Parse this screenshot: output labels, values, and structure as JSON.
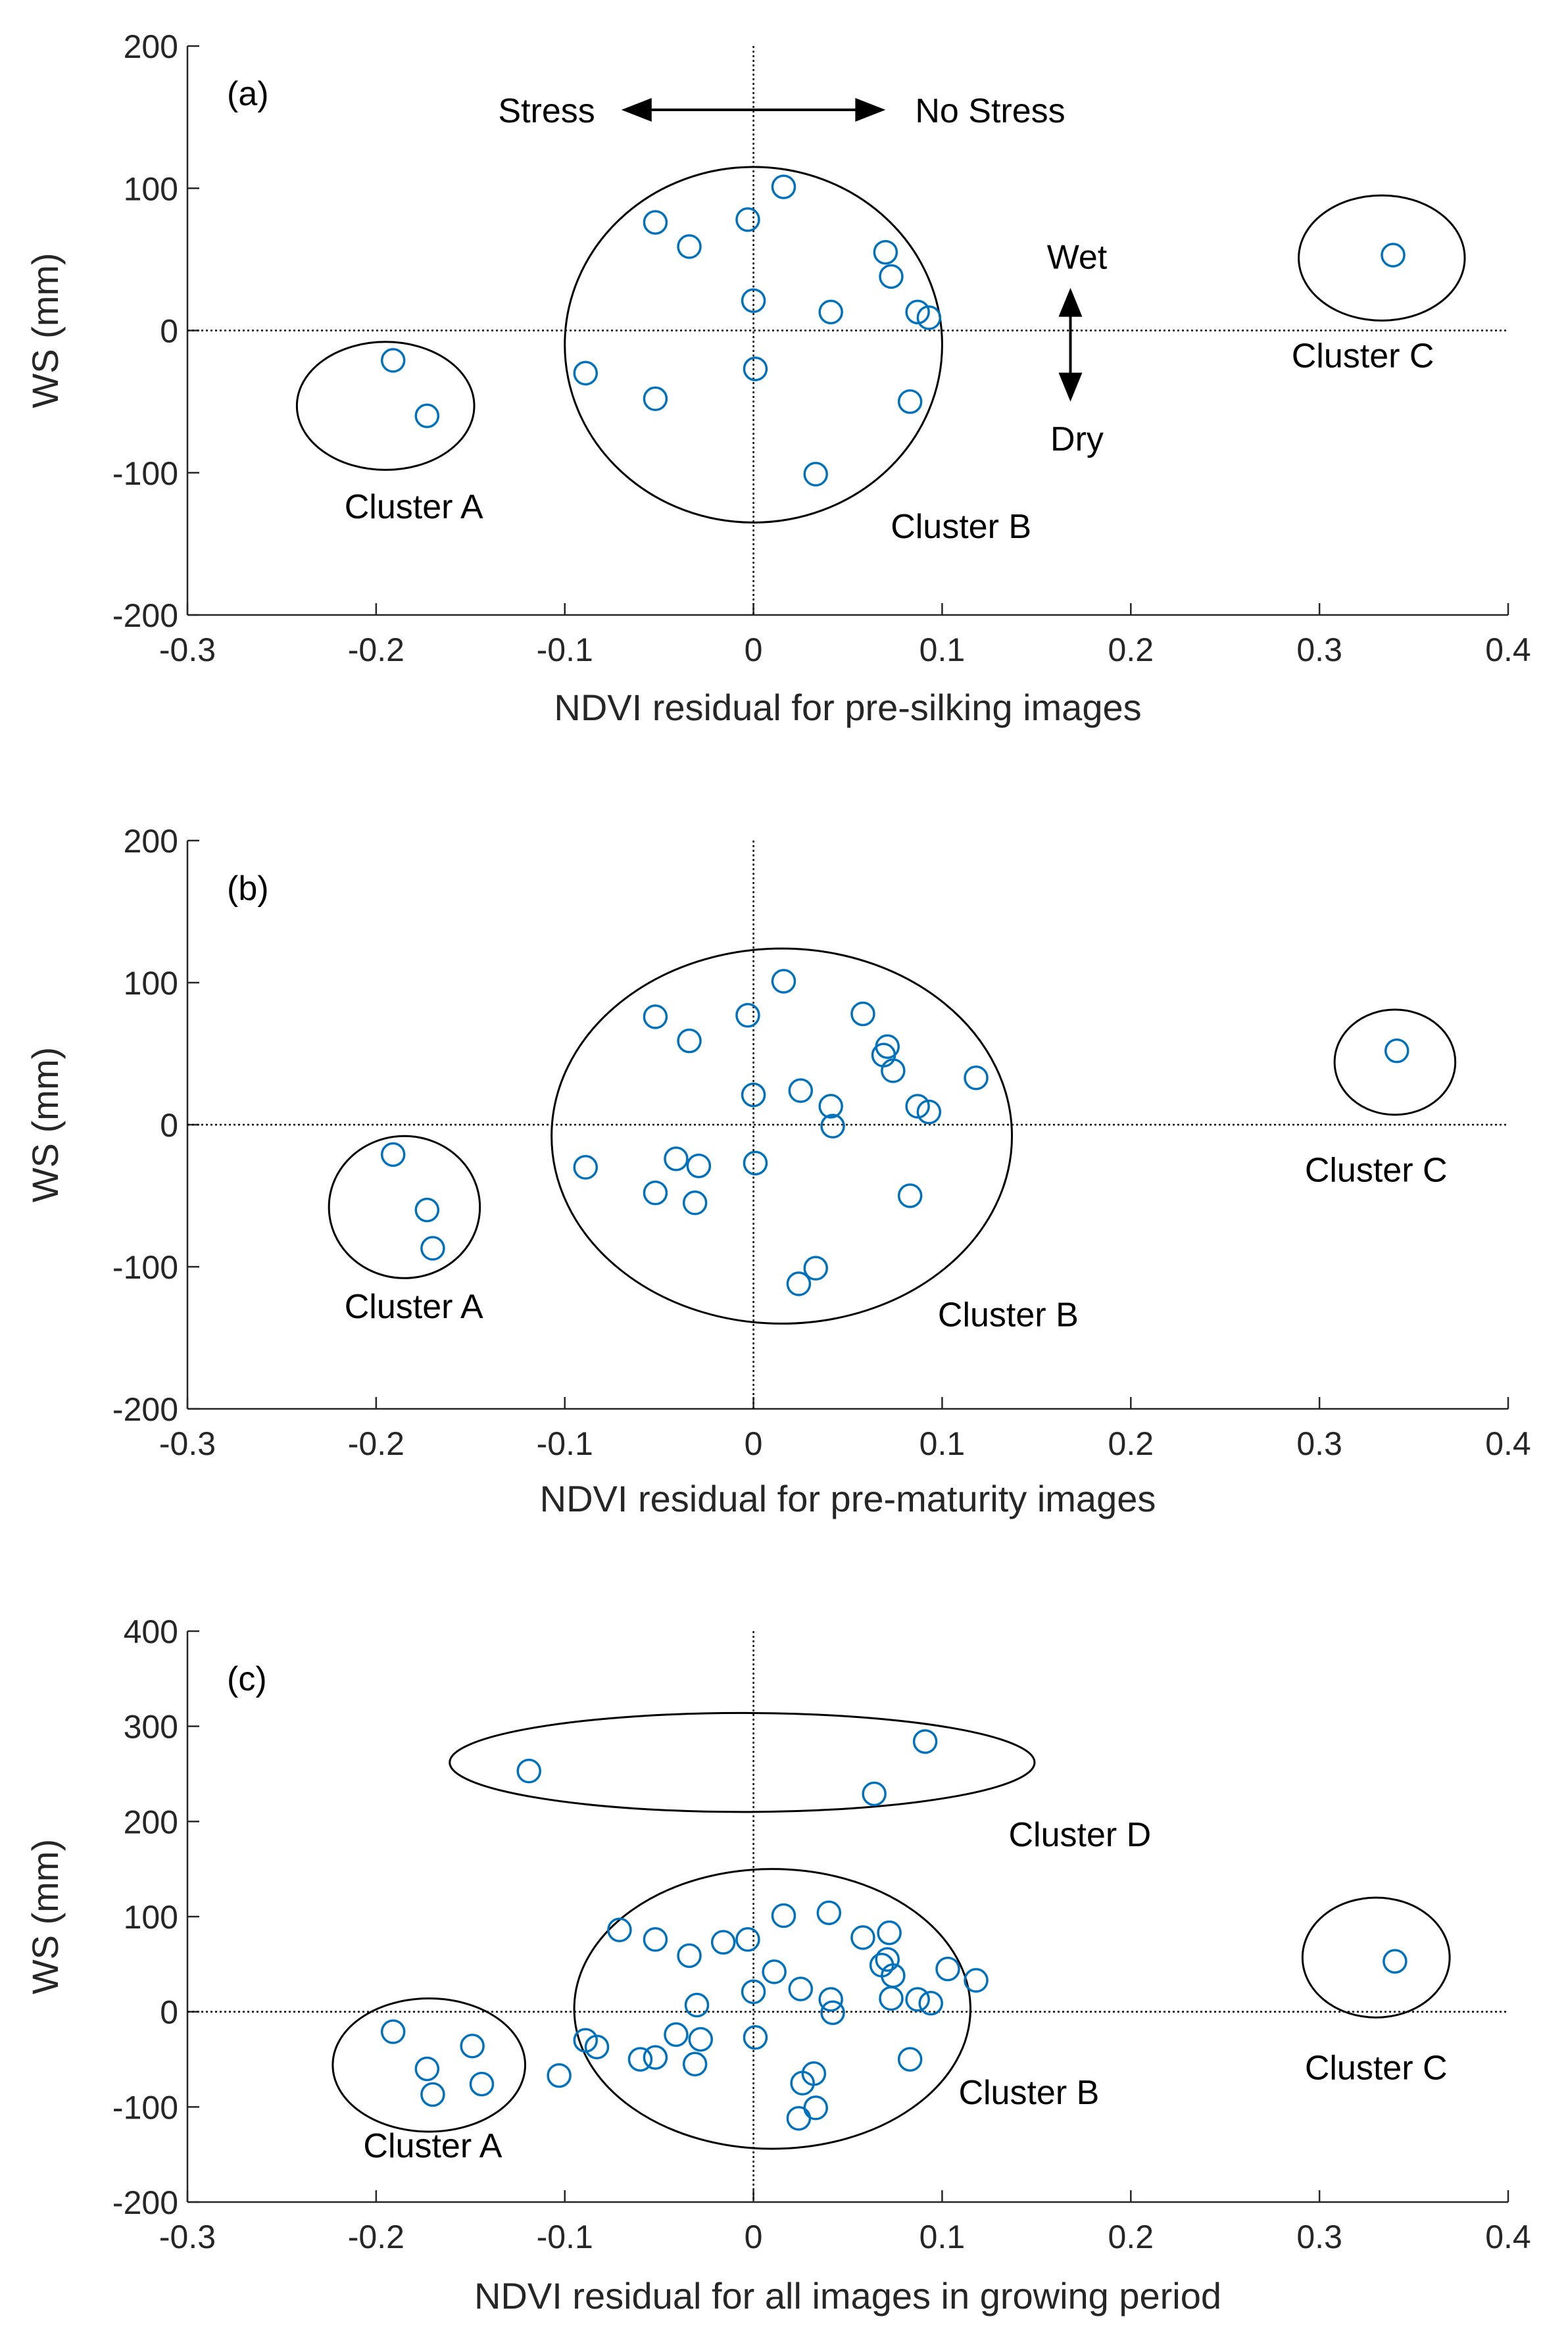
{
  "chart_data": [
    {
      "type": "scatter",
      "panel_label": "(a)",
      "xlabel": "NDVI residual for pre-silking images",
      "ylabel": "WS (mm)",
      "xlim": [
        -0.3,
        0.4
      ],
      "ylim": [
        -200,
        200
      ],
      "xticks": [
        -0.3,
        -0.2,
        -0.1,
        0,
        0.1,
        0.2,
        0.3,
        0.4
      ],
      "yticks": [
        -200,
        -100,
        0,
        100,
        200
      ],
      "xtick_labels": [
        "-0.3",
        "-0.2",
        "-0.1",
        "0",
        "0.1",
        "0.2",
        "0.3",
        "0.4"
      ],
      "ytick_labels": [
        "-200",
        "-100",
        "0",
        "100",
        "200"
      ],
      "marker_color": "#0072BD",
      "points": [
        {
          "x": -0.191,
          "y": -21
        },
        {
          "x": -0.173,
          "y": -60
        },
        {
          "x": -0.089,
          "y": -30
        },
        {
          "x": -0.052,
          "y": 76
        },
        {
          "x": -0.052,
          "y": -48
        },
        {
          "x": -0.034,
          "y": 59
        },
        {
          "x": -0.003,
          "y": 78
        },
        {
          "x": 0.0,
          "y": 21
        },
        {
          "x": 0.001,
          "y": -27
        },
        {
          "x": 0.016,
          "y": 101
        },
        {
          "x": 0.033,
          "y": -101
        },
        {
          "x": 0.041,
          "y": 13
        },
        {
          "x": 0.07,
          "y": 55
        },
        {
          "x": 0.073,
          "y": 38
        },
        {
          "x": 0.083,
          "y": -50
        },
        {
          "x": 0.087,
          "y": 13
        },
        {
          "x": 0.093,
          "y": 9
        },
        {
          "x": 0.339,
          "y": 53
        }
      ],
      "clusters": [
        {
          "label": "Cluster A",
          "cx": -0.195,
          "cy": -53,
          "rx": 0.047,
          "ry": 45,
          "label_x": -0.18,
          "label_y": -132
        },
        {
          "label": "Cluster B",
          "cx": 0.0,
          "cy": -10,
          "rx": 0.1,
          "ry": 125,
          "label_x": 0.11,
          "label_y": -146
        },
        {
          "label": "Cluster C",
          "cx": 0.333,
          "cy": 51,
          "rx": 0.044,
          "ry": 44,
          "label_x": 0.323,
          "label_y": -26
        }
      ],
      "annotations": {
        "stress_left": "Stress",
        "stress_right": "No Stress",
        "wet": "Wet",
        "dry": "Dry"
      }
    },
    {
      "type": "scatter",
      "panel_label": "(b)",
      "xlabel": "NDVI residual for pre-maturity images",
      "ylabel": "WS (mm)",
      "xlim": [
        -0.3,
        0.4
      ],
      "ylim": [
        -200,
        200
      ],
      "xticks": [
        -0.3,
        -0.2,
        -0.1,
        0,
        0.1,
        0.2,
        0.3,
        0.4
      ],
      "yticks": [
        -200,
        -100,
        0,
        100,
        200
      ],
      "xtick_labels": [
        "-0.3",
        "-0.2",
        "-0.1",
        "0",
        "0.1",
        "0.2",
        "0.3",
        "0.4"
      ],
      "ytick_labels": [
        "-200",
        "-100",
        "0",
        "100",
        "200"
      ],
      "marker_color": "#0072BD",
      "points": [
        {
          "x": -0.191,
          "y": -21
        },
        {
          "x": -0.173,
          "y": -60
        },
        {
          "x": -0.17,
          "y": -87
        },
        {
          "x": -0.089,
          "y": -30
        },
        {
          "x": -0.052,
          "y": 76
        },
        {
          "x": -0.052,
          "y": -48
        },
        {
          "x": -0.041,
          "y": -24
        },
        {
          "x": -0.034,
          "y": 59
        },
        {
          "x": -0.031,
          "y": -55
        },
        {
          "x": -0.029,
          "y": -29
        },
        {
          "x": -0.003,
          "y": 77
        },
        {
          "x": 0.0,
          "y": 21
        },
        {
          "x": 0.001,
          "y": -27
        },
        {
          "x": 0.016,
          "y": 101
        },
        {
          "x": 0.024,
          "y": -112
        },
        {
          "x": 0.025,
          "y": 24
        },
        {
          "x": 0.033,
          "y": -101
        },
        {
          "x": 0.041,
          "y": 13
        },
        {
          "x": 0.042,
          "y": -1
        },
        {
          "x": 0.058,
          "y": 78
        },
        {
          "x": 0.069,
          "y": 49
        },
        {
          "x": 0.071,
          "y": 55
        },
        {
          "x": 0.074,
          "y": 38
        },
        {
          "x": 0.083,
          "y": -50
        },
        {
          "x": 0.087,
          "y": 13
        },
        {
          "x": 0.093,
          "y": 9
        },
        {
          "x": 0.118,
          "y": 33
        },
        {
          "x": 0.341,
          "y": 52
        }
      ],
      "clusters": [
        {
          "label": "Cluster A",
          "cx": -0.185,
          "cy": -58,
          "rx": 0.04,
          "ry": 50,
          "label_x": -0.18,
          "label_y": -136
        },
        {
          "label": "Cluster B",
          "cx": 0.015,
          "cy": -8,
          "rx": 0.122,
          "ry": 132,
          "label_x": 0.135,
          "label_y": -142
        },
        {
          "label": "Cluster C",
          "cx": 0.34,
          "cy": 44,
          "rx": 0.032,
          "ry": 37,
          "label_x": 0.33,
          "label_y": -40
        }
      ]
    },
    {
      "type": "scatter",
      "panel_label": "(c)",
      "xlabel": "NDVI residual for all images in growing period",
      "ylabel": "WS (mm)",
      "xlim": [
        -0.3,
        0.4
      ],
      "ylim": [
        -200,
        400
      ],
      "xticks": [
        -0.3,
        -0.2,
        -0.1,
        0,
        0.1,
        0.2,
        0.3,
        0.4
      ],
      "yticks": [
        -200,
        -100,
        0,
        100,
        200,
        300,
        400
      ],
      "xtick_labels": [
        "-0.3",
        "-0.2",
        "-0.1",
        "0",
        "0.1",
        "0.2",
        "0.3",
        "0.4"
      ],
      "ytick_labels": [
        "-200",
        "-100",
        "0",
        "100",
        "200",
        "300",
        "400"
      ],
      "marker_color": "#0072BD",
      "points": [
        {
          "x": -0.191,
          "y": -21
        },
        {
          "x": -0.173,
          "y": -60
        },
        {
          "x": -0.17,
          "y": -87
        },
        {
          "x": -0.149,
          "y": -36
        },
        {
          "x": -0.144,
          "y": -76
        },
        {
          "x": -0.119,
          "y": 253
        },
        {
          "x": -0.103,
          "y": -67
        },
        {
          "x": -0.089,
          "y": -30
        },
        {
          "x": -0.083,
          "y": -37
        },
        {
          "x": -0.071,
          "y": 86
        },
        {
          "x": -0.06,
          "y": -50
        },
        {
          "x": -0.052,
          "y": 76
        },
        {
          "x": -0.052,
          "y": -48
        },
        {
          "x": -0.041,
          "y": -24
        },
        {
          "x": -0.034,
          "y": 59
        },
        {
          "x": -0.031,
          "y": -55
        },
        {
          "x": -0.03,
          "y": 7
        },
        {
          "x": -0.028,
          "y": -29
        },
        {
          "x": -0.016,
          "y": 73
        },
        {
          "x": -0.003,
          "y": 76
        },
        {
          "x": 0.0,
          "y": 21
        },
        {
          "x": 0.001,
          "y": -27
        },
        {
          "x": 0.011,
          "y": 42
        },
        {
          "x": 0.016,
          "y": 101
        },
        {
          "x": 0.024,
          "y": -112
        },
        {
          "x": 0.025,
          "y": 24
        },
        {
          "x": 0.026,
          "y": -75
        },
        {
          "x": 0.032,
          "y": -65
        },
        {
          "x": 0.033,
          "y": -101
        },
        {
          "x": 0.04,
          "y": 104
        },
        {
          "x": 0.041,
          "y": 13
        },
        {
          "x": 0.042,
          "y": -1
        },
        {
          "x": 0.058,
          "y": 78
        },
        {
          "x": 0.064,
          "y": 229
        },
        {
          "x": 0.068,
          "y": 49
        },
        {
          "x": 0.071,
          "y": 55
        },
        {
          "x": 0.072,
          "y": 83
        },
        {
          "x": 0.073,
          "y": 14
        },
        {
          "x": 0.074,
          "y": 38
        },
        {
          "x": 0.083,
          "y": -50
        },
        {
          "x": 0.087,
          "y": 13
        },
        {
          "x": 0.091,
          "y": 284
        },
        {
          "x": 0.094,
          "y": 9
        },
        {
          "x": 0.103,
          "y": 45
        },
        {
          "x": 0.118,
          "y": 33
        },
        {
          "x": 0.34,
          "y": 53
        }
      ],
      "clusters": [
        {
          "label": "Cluster A",
          "cx": -0.172,
          "cy": -56,
          "rx": 0.051,
          "ry": 70,
          "label_x": -0.17,
          "label_y": -153
        },
        {
          "label": "Cluster B",
          "cx": 0.01,
          "cy": 3,
          "rx": 0.105,
          "ry": 147,
          "label_x": 0.146,
          "label_y": -97
        },
        {
          "label": "Cluster C",
          "cx": 0.33,
          "cy": 57,
          "rx": 0.039,
          "ry": 63,
          "label_x": 0.33,
          "label_y": -71
        },
        {
          "label": "Cluster D",
          "cx": -0.006,
          "cy": 262,
          "rx": 0.155,
          "ry": 52,
          "label_x": 0.173,
          "label_y": 174
        }
      ]
    }
  ]
}
